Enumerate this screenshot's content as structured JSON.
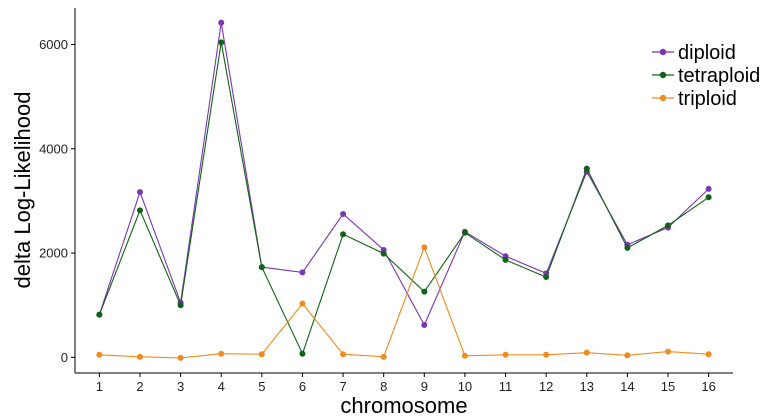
{
  "chart_data": {
    "type": "line",
    "xlabel": "chromosome",
    "ylabel": "delta Log-Likelihood",
    "x": [
      1,
      2,
      3,
      4,
      5,
      6,
      7,
      8,
      9,
      10,
      11,
      12,
      13,
      14,
      15,
      16
    ],
    "x_ticks": [
      "1",
      "2",
      "3",
      "4",
      "5",
      "6",
      "7",
      "8",
      "9",
      "10",
      "11",
      "12",
      "13",
      "14",
      "15",
      "16"
    ],
    "y_ticks": [
      0,
      2000,
      4000,
      6000
    ],
    "ylim": [
      -300,
      6700
    ],
    "xlim": [
      0.4,
      16.6
    ],
    "grid": false,
    "legend_position": "top-right",
    "series": [
      {
        "name": "diploid",
        "color": "#7b35b5",
        "values": [
          820,
          3170,
          1050,
          6420,
          1730,
          1630,
          2750,
          2060,
          620,
          2410,
          1940,
          1610,
          3560,
          2160,
          2490,
          3230
        ]
      },
      {
        "name": "tetraploid",
        "color": "#0f6312",
        "values": [
          820,
          2820,
          1000,
          6040,
          1730,
          70,
          2360,
          1990,
          1260,
          2390,
          1870,
          1540,
          3620,
          2100,
          2530,
          3070
        ]
      },
      {
        "name": "triploid",
        "color": "#f08b1f",
        "values": [
          50,
          10,
          -10,
          70,
          60,
          1030,
          60,
          10,
          2110,
          30,
          50,
          50,
          90,
          40,
          110,
          60
        ]
      }
    ]
  }
}
